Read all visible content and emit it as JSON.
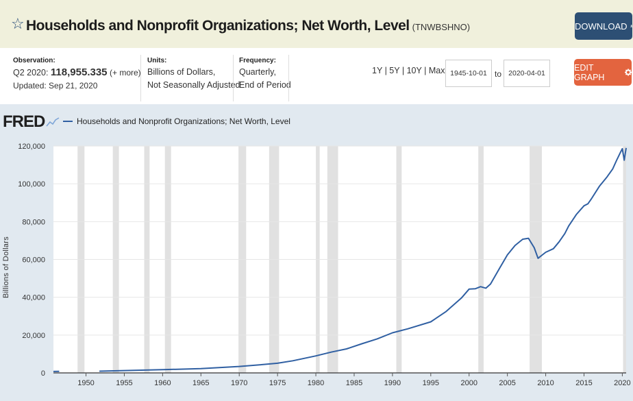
{
  "header": {
    "title": "Households and Nonprofit Organizations; Net Worth, Level",
    "series_code": "(TNWBSHNO)",
    "download_label": "DOWNLOAD",
    "star_icon": "star-icon",
    "download_icon": "download-icon"
  },
  "meta": {
    "observation_label": "Observation:",
    "observation_period": "Q2 2020:",
    "observation_value": "118,955.335",
    "observation_more": "(+ more)",
    "updated": "Updated: Sep 21, 2020",
    "units_label": "Units:",
    "units_line1": "Billions of Dollars,",
    "units_line2": "Not Seasonally Adjusted",
    "frequency_label": "Frequency:",
    "frequency_line1": "Quarterly,",
    "frequency_line2": "End of Period"
  },
  "controls": {
    "range_1y": "1Y",
    "range_5y": "5Y",
    "range_10y": "10Y",
    "range_max": "Max",
    "sep": "|",
    "start_date": "1945-10-01",
    "to_label": "to",
    "end_date": "2020-04-01",
    "edit_graph_label": "EDIT GRAPH",
    "gear_icon": "gear-icon"
  },
  "colors": {
    "line": "#2f5fa2",
    "recession": "#e1e1e1",
    "edit_button": "#e3643f",
    "download_button": "#2d4f74",
    "title_bar": "#f0f0dc"
  },
  "chart_data": {
    "type": "line",
    "brand": "FRED",
    "title": "Households and Nonprofit Organizations; Net Worth, Level",
    "legend": "Households and Nonprofit Organizations; Net Worth, Level",
    "xlabel": "",
    "ylabel": "Billions of Dollars",
    "xlim": [
      1945.75,
      2020.5
    ],
    "ylim": [
      0,
      120000
    ],
    "y_ticks": [
      0,
      20000,
      40000,
      60000,
      80000,
      100000,
      120000
    ],
    "y_tick_labels": [
      "0",
      "20,000",
      "40,000",
      "60,000",
      "80,000",
      "100,000",
      "120,000"
    ],
    "x_ticks": [
      1950,
      1955,
      1960,
      1965,
      1970,
      1975,
      1980,
      1985,
      1990,
      1995,
      2000,
      2005,
      2010,
      2015,
      2020
    ],
    "x_tick_labels": [
      "1950",
      "1955",
      "1960",
      "1965",
      "1970",
      "1975",
      "1980",
      "1985",
      "1990",
      "1995",
      "2000",
      "2005",
      "2010",
      "2015",
      "2020"
    ],
    "recessions": [
      [
        1948.9,
        1949.8
      ],
      [
        1953.5,
        1954.3
      ],
      [
        1957.6,
        1958.3
      ],
      [
        1960.3,
        1961.1
      ],
      [
        1969.9,
        1970.9
      ],
      [
        1973.9,
        1975.2
      ],
      [
        1980.0,
        1980.5
      ],
      [
        1981.5,
        1982.9
      ],
      [
        1990.5,
        1991.2
      ],
      [
        2001.2,
        2001.9
      ],
      [
        2007.9,
        2009.5
      ],
      [
        2020.1,
        2020.5
      ]
    ],
    "series": [
      {
        "name": "TNWBSHNO",
        "segments": [
          {
            "x": [
              1945.75,
              1946.5
            ],
            "y": [
              760,
              780
            ]
          },
          {
            "x": [
              1951.75,
              1955,
              1960,
              1965,
              1970,
              1973,
              1975,
              1977,
              1980,
              1982,
              1984,
              1986,
              1988,
              1990,
              1992,
              1995,
              1997,
              1999,
              2000,
              2000.8,
              2001.5,
              2002.2,
              2002.8,
              2004,
              2005,
              2006,
              2007,
              2007.75,
              2008.5,
              2009.0,
              2009.5,
              2010,
              2011,
              2011.75,
              2012.5,
              2013,
              2014,
              2015,
              2015.5,
              2016,
              2017,
              2018,
              2018.75,
              2019.25,
              2019.75,
              2020.0,
              2020.25,
              2020.5
            ],
            "y": [
              900,
              1250,
              1700,
              2300,
              3400,
              4400,
              5100,
              6400,
              9000,
              11000,
              12700,
              15400,
              18000,
              21200,
              23300,
              27000,
              32500,
              39600,
              44300,
              44500,
              45600,
              44800,
              47000,
              55500,
              62400,
              67400,
              70700,
              71200,
              66200,
              60600,
              62200,
              63800,
              65700,
              69300,
              73700,
              77700,
              83800,
              88400,
              89400,
              92300,
              98700,
              103600,
              107900,
              112400,
              116600,
              118600,
              112500,
              118955
            ]
          }
        ]
      }
    ]
  }
}
